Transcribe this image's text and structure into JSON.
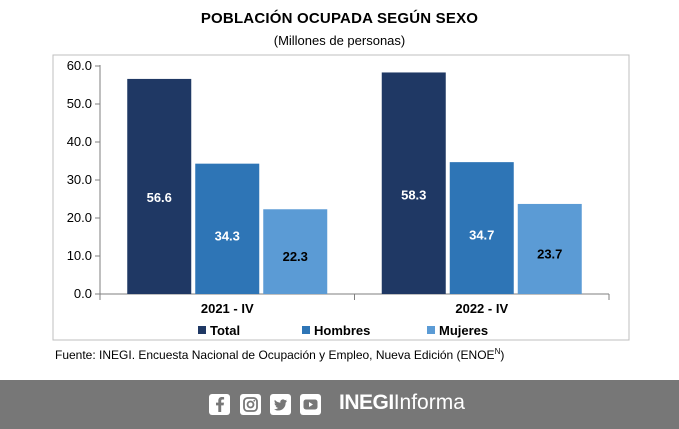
{
  "colors": {
    "total": "#1f3864",
    "hombres": "#2e75b6",
    "mujeres": "#5b9bd5",
    "footer_bg": "#777777",
    "frame": "#bfbfbf"
  },
  "footer": {
    "icons": [
      "facebook-icon",
      "instagram-icon",
      "twitter-icon",
      "youtube-icon"
    ],
    "brand_bold": "INEGI",
    "brand_rest": "Informa"
  },
  "chart_data": {
    "type": "bar",
    "title": "POBLACIÓN OCUPADA SEGÚN SEXO",
    "subtitle": "(Millones de personas)",
    "categories": [
      "2021 - IV",
      "2022 - IV"
    ],
    "series": [
      {
        "name": "Total",
        "values": [
          56.6,
          58.3
        ]
      },
      {
        "name": "Hombres",
        "values": [
          34.3,
          34.7
        ]
      },
      {
        "name": "Mujeres",
        "values": [
          22.3,
          23.7
        ]
      }
    ],
    "value_labels": {
      "Total": [
        "56.6",
        "58.3"
      ],
      "Hombres": [
        "34.3",
        "34.7"
      ],
      "Mujeres": [
        "22.3",
        "23.7"
      ]
    },
    "yticks": [
      "0.0",
      "10.0",
      "20.0",
      "30.0",
      "40.0",
      "50.0",
      "60.0"
    ],
    "ylim": [
      0,
      60
    ],
    "legend_position": "bottom",
    "grid": false,
    "source_text": "Fuente: INEGI. Encuesta Nacional de Ocupación y Empleo, Nueva Edición (ENOE",
    "source_sup": "N",
    "source_close": ")"
  }
}
